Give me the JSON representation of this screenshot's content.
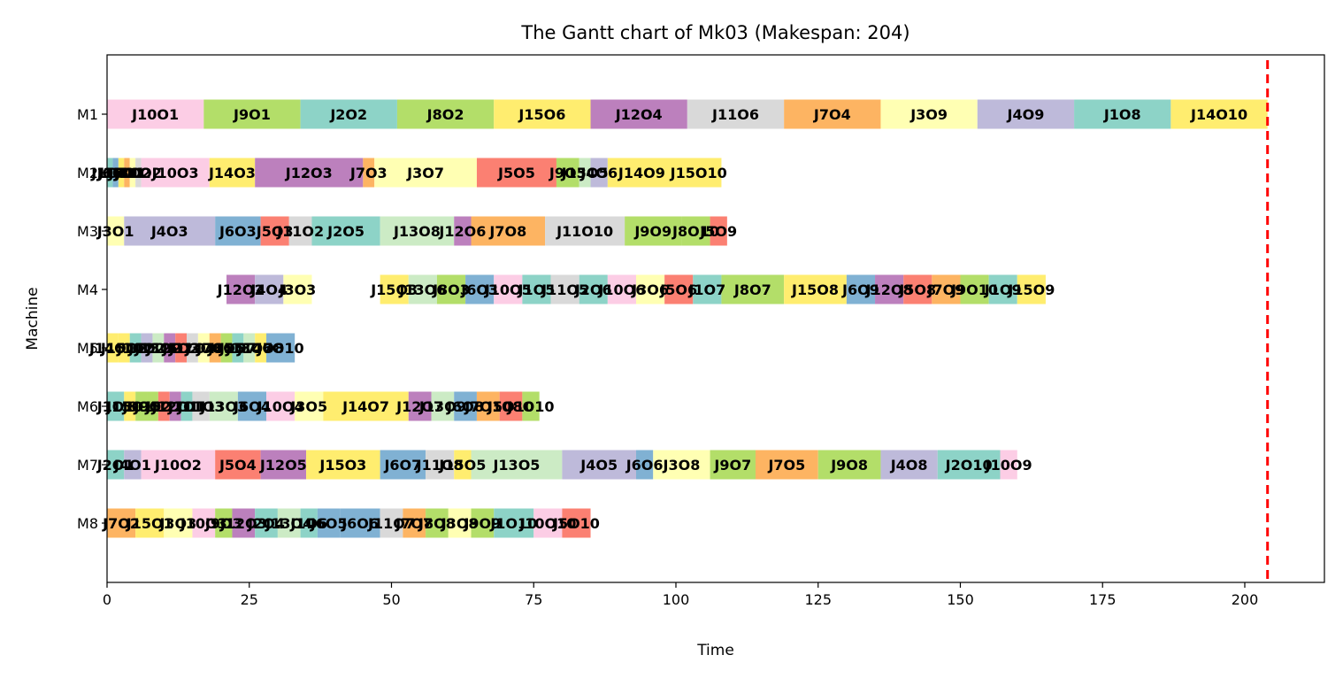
{
  "chart_data": {
    "type": "gantt",
    "title": "The Gantt chart of Mk03 (Makespan: 204)",
    "xlabel": "Time",
    "ylabel": "Machine",
    "xlim": [
      0,
      214
    ],
    "xticks": [
      0,
      25,
      50,
      75,
      100,
      125,
      150,
      175,
      200
    ],
    "machines": [
      "M1",
      "M2",
      "M3",
      "M4",
      "M5",
      "M6",
      "M7",
      "M8"
    ],
    "makespan": 204,
    "makespan_line_color": "#ff0000",
    "palette": [
      "#8dd3c7",
      "#ffffb3",
      "#bebada",
      "#fb8072",
      "#80b1d3",
      "#fdb462",
      "#b3de69",
      "#fccde5",
      "#d9d9d9",
      "#bc80bd",
      "#ccebc5",
      "#ffed6f"
    ],
    "grid": false,
    "legend": "none",
    "tasks": [
      {
        "machine": "M1",
        "label": "J10O1",
        "start": 0,
        "end": 17,
        "color": "#fccde5"
      },
      {
        "machine": "M1",
        "label": "J9O1",
        "start": 17,
        "end": 34,
        "color": "#b3de69"
      },
      {
        "machine": "M1",
        "label": "J2O2",
        "start": 34,
        "end": 51,
        "color": "#8dd3c7"
      },
      {
        "machine": "M1",
        "label": "J8O2",
        "start": 51,
        "end": 68,
        "color": "#b3de69"
      },
      {
        "machine": "M1",
        "label": "J15O6",
        "start": 68,
        "end": 85,
        "color": "#ffed6f"
      },
      {
        "machine": "M1",
        "label": "J12O4",
        "start": 85,
        "end": 102,
        "color": "#bc80bd"
      },
      {
        "machine": "M1",
        "label": "J11O6",
        "start": 102,
        "end": 119,
        "color": "#d9d9d9"
      },
      {
        "machine": "M1",
        "label": "J7O4",
        "start": 119,
        "end": 136,
        "color": "#fdb462"
      },
      {
        "machine": "M1",
        "label": "J3O9",
        "start": 136,
        "end": 153,
        "color": "#ffffb3"
      },
      {
        "machine": "M1",
        "label": "J4O9",
        "start": 153,
        "end": 170,
        "color": "#bebada"
      },
      {
        "machine": "M1",
        "label": "J1O8",
        "start": 170,
        "end": 187,
        "color": "#8dd3c7"
      },
      {
        "machine": "M1",
        "label": "J14O10",
        "start": 187,
        "end": 204,
        "color": "#ffed6f"
      },
      {
        "machine": "M2",
        "label": "J1O1",
        "start": 0,
        "end": 1,
        "color": "#8dd3c7"
      },
      {
        "machine": "M2",
        "label": "J6O1",
        "start": 1,
        "end": 2,
        "color": "#80b1d3"
      },
      {
        "machine": "M2",
        "label": "J15O1",
        "start": 2,
        "end": 3,
        "color": "#ffed6f"
      },
      {
        "machine": "M2",
        "label": "J7O1",
        "start": 3,
        "end": 4,
        "color": "#fdb462"
      },
      {
        "machine": "M2",
        "label": "J3O2",
        "start": 4,
        "end": 5,
        "color": "#ffffb3"
      },
      {
        "machine": "M2",
        "label": "J11O2",
        "start": 5,
        "end": 6,
        "color": "#d9d9d9"
      },
      {
        "machine": "M2",
        "label": "J10O3",
        "start": 6,
        "end": 18,
        "color": "#fccde5"
      },
      {
        "machine": "M2",
        "label": "J14O3",
        "start": 18,
        "end": 26,
        "color": "#ffed6f"
      },
      {
        "machine": "M2",
        "label": "J12O3",
        "start": 26,
        "end": 45,
        "color": "#bc80bd"
      },
      {
        "machine": "M2",
        "label": "J7O3",
        "start": 45,
        "end": 47,
        "color": "#fdb462"
      },
      {
        "machine": "M2",
        "label": "J3O7",
        "start": 47,
        "end": 65,
        "color": "#ffffb3"
      },
      {
        "machine": "M2",
        "label": "J5O5",
        "start": 65,
        "end": 79,
        "color": "#fb8072"
      },
      {
        "machine": "M2",
        "label": "J9O5",
        "start": 79,
        "end": 83,
        "color": "#b3de69"
      },
      {
        "machine": "M2",
        "label": "J13O5",
        "start": 83,
        "end": 85,
        "color": "#ccebc5"
      },
      {
        "machine": "M2",
        "label": "J4O6",
        "start": 85,
        "end": 88,
        "color": "#bebada"
      },
      {
        "machine": "M2",
        "label": "J14O9",
        "start": 88,
        "end": 100,
        "color": "#ffed6f"
      },
      {
        "machine": "M2",
        "label": "J15O10",
        "start": 100,
        "end": 108,
        "color": "#ffed6f"
      },
      {
        "machine": "M3",
        "label": "J3O1",
        "start": 0,
        "end": 3,
        "color": "#ffffb3"
      },
      {
        "machine": "M3",
        "label": "J4O3",
        "start": 3,
        "end": 19,
        "color": "#bebada"
      },
      {
        "machine": "M3",
        "label": "J6O3",
        "start": 19,
        "end": 27,
        "color": "#80b1d3"
      },
      {
        "machine": "M3",
        "label": "J5O3",
        "start": 27,
        "end": 32,
        "color": "#fb8072"
      },
      {
        "machine": "M3",
        "label": "J11O2",
        "start": 32,
        "end": 36,
        "color": "#d9d9d9"
      },
      {
        "machine": "M3",
        "label": "J2O5",
        "start": 36,
        "end": 48,
        "color": "#8dd3c7"
      },
      {
        "machine": "M3",
        "label": "J13O8",
        "start": 48,
        "end": 61,
        "color": "#ccebc5"
      },
      {
        "machine": "M3",
        "label": "J12O6",
        "start": 61,
        "end": 64,
        "color": "#bc80bd"
      },
      {
        "machine": "M3",
        "label": "J7O8",
        "start": 64,
        "end": 77,
        "color": "#fdb462"
      },
      {
        "machine": "M3",
        "label": "J11O10",
        "start": 77,
        "end": 91,
        "color": "#d9d9d9"
      },
      {
        "machine": "M3",
        "label": "J9O9",
        "start": 91,
        "end": 101,
        "color": "#b3de69"
      },
      {
        "machine": "M3",
        "label": "J8O10",
        "start": 101,
        "end": 106,
        "color": "#b3de69"
      },
      {
        "machine": "M3",
        "label": "J5O9",
        "start": 106,
        "end": 109,
        "color": "#fb8072"
      },
      {
        "machine": "M4",
        "label": "J12O2",
        "start": 21,
        "end": 26,
        "color": "#bc80bd"
      },
      {
        "machine": "M4",
        "label": "J4O4",
        "start": 26,
        "end": 31,
        "color": "#bebada"
      },
      {
        "machine": "M4",
        "label": "J3O3",
        "start": 31,
        "end": 36,
        "color": "#ffffb3"
      },
      {
        "machine": "M4",
        "label": "J15O3",
        "start": 48,
        "end": 53,
        "color": "#ffed6f"
      },
      {
        "machine": "M4",
        "label": "J13O6",
        "start": 53,
        "end": 58,
        "color": "#ccebc5"
      },
      {
        "machine": "M4",
        "label": "J8O3",
        "start": 58,
        "end": 63,
        "color": "#b3de69"
      },
      {
        "machine": "M4",
        "label": "J6O3",
        "start": 63,
        "end": 68,
        "color": "#80b1d3"
      },
      {
        "machine": "M4",
        "label": "J10O5",
        "start": 68,
        "end": 73,
        "color": "#fccde5"
      },
      {
        "machine": "M4",
        "label": "J1O5",
        "start": 73,
        "end": 78,
        "color": "#8dd3c7"
      },
      {
        "machine": "M4",
        "label": "J11O5",
        "start": 78,
        "end": 83,
        "color": "#d9d9d9"
      },
      {
        "machine": "M4",
        "label": "J2O6",
        "start": 83,
        "end": 88,
        "color": "#8dd3c7"
      },
      {
        "machine": "M4",
        "label": "J10O6",
        "start": 88,
        "end": 93,
        "color": "#fccde5"
      },
      {
        "machine": "M4",
        "label": "J3O6",
        "start": 93,
        "end": 98,
        "color": "#ffffb3"
      },
      {
        "machine": "M4",
        "label": "J5O6",
        "start": 98,
        "end": 103,
        "color": "#fb8072"
      },
      {
        "machine": "M4",
        "label": "J1O7",
        "start": 103,
        "end": 108,
        "color": "#8dd3c7"
      },
      {
        "machine": "M4",
        "label": "J8O7",
        "start": 108,
        "end": 119,
        "color": "#b3de69"
      },
      {
        "machine": "M4",
        "label": "J15O8",
        "start": 119,
        "end": 130,
        "color": "#ffed6f"
      },
      {
        "machine": "M4",
        "label": "J6O9",
        "start": 130,
        "end": 135,
        "color": "#80b1d3"
      },
      {
        "machine": "M4",
        "label": "J12O8",
        "start": 135,
        "end": 140,
        "color": "#bc80bd"
      },
      {
        "machine": "M4",
        "label": "J5O8",
        "start": 140,
        "end": 145,
        "color": "#fb8072"
      },
      {
        "machine": "M4",
        "label": "J7O9",
        "start": 145,
        "end": 150,
        "color": "#fdb462"
      },
      {
        "machine": "M4",
        "label": "J9O10",
        "start": 150,
        "end": 155,
        "color": "#b3de69"
      },
      {
        "machine": "M4",
        "label": "J1O9",
        "start": 155,
        "end": 160,
        "color": "#8dd3c7"
      },
      {
        "machine": "M4",
        "label": "J15O9",
        "start": 160,
        "end": 165,
        "color": "#ffed6f"
      },
      {
        "machine": "M5",
        "label": "J14O1",
        "start": 0,
        "end": 2,
        "color": "#ffed6f"
      },
      {
        "machine": "M5",
        "label": "J15O2",
        "start": 2,
        "end": 4,
        "color": "#ffed6f"
      },
      {
        "machine": "M5",
        "label": "J1O2",
        "start": 4,
        "end": 6,
        "color": "#8dd3c7"
      },
      {
        "machine": "M5",
        "label": "J4O2",
        "start": 6,
        "end": 8,
        "color": "#bebada"
      },
      {
        "machine": "M5",
        "label": "J13O2",
        "start": 8,
        "end": 10,
        "color": "#ccebc5"
      },
      {
        "machine": "M5",
        "label": "J12O2",
        "start": 10,
        "end": 12,
        "color": "#bc80bd"
      },
      {
        "machine": "M5",
        "label": "J5O2",
        "start": 12,
        "end": 14,
        "color": "#fb8072"
      },
      {
        "machine": "M5",
        "label": "J11O4",
        "start": 14,
        "end": 16,
        "color": "#d9d9d9"
      },
      {
        "machine": "M5",
        "label": "J3O4",
        "start": 16,
        "end": 18,
        "color": "#ffffb3"
      },
      {
        "machine": "M5",
        "label": "J7O5",
        "start": 18,
        "end": 20,
        "color": "#fdb462"
      },
      {
        "machine": "M5",
        "label": "J8O5",
        "start": 20,
        "end": 22,
        "color": "#b3de69"
      },
      {
        "machine": "M5",
        "label": "J2O7",
        "start": 22,
        "end": 24,
        "color": "#8dd3c7"
      },
      {
        "machine": "M5",
        "label": "J13O7",
        "start": 24,
        "end": 26,
        "color": "#ccebc5"
      },
      {
        "machine": "M5",
        "label": "J14O8",
        "start": 26,
        "end": 28,
        "color": "#ffed6f"
      },
      {
        "machine": "M5",
        "label": "J6O10",
        "start": 28,
        "end": 33,
        "color": "#80b1d3"
      },
      {
        "machine": "M6",
        "label": "J1O1",
        "start": 0,
        "end": 3,
        "color": "#8dd3c7"
      },
      {
        "machine": "M6",
        "label": "J15O1",
        "start": 3,
        "end": 5,
        "color": "#ffed6f"
      },
      {
        "machine": "M6",
        "label": "J8O1",
        "start": 5,
        "end": 7,
        "color": "#b3de69"
      },
      {
        "machine": "M6",
        "label": "J9O2",
        "start": 7,
        "end": 9,
        "color": "#b3de69"
      },
      {
        "machine": "M6",
        "label": "J5O1",
        "start": 9,
        "end": 11,
        "color": "#fb8072"
      },
      {
        "machine": "M6",
        "label": "J12O1",
        "start": 11,
        "end": 13,
        "color": "#bc80bd"
      },
      {
        "machine": "M6",
        "label": "J2O1",
        "start": 13,
        "end": 15,
        "color": "#8dd3c7"
      },
      {
        "machine": "M6",
        "label": "J11O3",
        "start": 15,
        "end": 18,
        "color": "#d9d9d9"
      },
      {
        "machine": "M6",
        "label": "J13O3",
        "start": 18,
        "end": 23,
        "color": "#ccebc5"
      },
      {
        "machine": "M6",
        "label": "J6O4",
        "start": 23,
        "end": 28,
        "color": "#80b1d3"
      },
      {
        "machine": "M6",
        "label": "J10O4",
        "start": 28,
        "end": 33,
        "color": "#fccde5"
      },
      {
        "machine": "M6",
        "label": "J3O5",
        "start": 33,
        "end": 38,
        "color": "#ffffb3"
      },
      {
        "machine": "M6",
        "label": "J14O7",
        "start": 38,
        "end": 53,
        "color": "#ffed6f"
      },
      {
        "machine": "M6",
        "label": "J12O7",
        "start": 53,
        "end": 57,
        "color": "#bc80bd"
      },
      {
        "machine": "M6",
        "label": "J13O9",
        "start": 57,
        "end": 61,
        "color": "#ccebc5"
      },
      {
        "machine": "M6",
        "label": "J6O8",
        "start": 61,
        "end": 65,
        "color": "#80b1d3"
      },
      {
        "machine": "M6",
        "label": "J7O10",
        "start": 65,
        "end": 69,
        "color": "#fdb462"
      },
      {
        "machine": "M6",
        "label": "J5O10",
        "start": 69,
        "end": 73,
        "color": "#fb8072"
      },
      {
        "machine": "M6",
        "label": "J8O10",
        "start": 73,
        "end": 76,
        "color": "#b3de69"
      },
      {
        "machine": "M7",
        "label": "J2O1",
        "start": 0,
        "end": 3,
        "color": "#8dd3c7"
      },
      {
        "machine": "M7",
        "label": "J4O1",
        "start": 3,
        "end": 6,
        "color": "#bebada"
      },
      {
        "machine": "M7",
        "label": "J10O2",
        "start": 6,
        "end": 19,
        "color": "#fccde5"
      },
      {
        "machine": "M7",
        "label": "J5O4",
        "start": 19,
        "end": 27,
        "color": "#fb8072"
      },
      {
        "machine": "M7",
        "label": "J12O5",
        "start": 27,
        "end": 35,
        "color": "#bc80bd"
      },
      {
        "machine": "M7",
        "label": "J15O3",
        "start": 35,
        "end": 48,
        "color": "#ffed6f"
      },
      {
        "machine": "M7",
        "label": "J6O7",
        "start": 48,
        "end": 56,
        "color": "#80b1d3"
      },
      {
        "machine": "M7",
        "label": "J11O8",
        "start": 56,
        "end": 61,
        "color": "#d9d9d9"
      },
      {
        "machine": "M7",
        "label": "J15O5",
        "start": 61,
        "end": 64,
        "color": "#ffed6f"
      },
      {
        "machine": "M7",
        "label": "J13O5",
        "start": 64,
        "end": 80,
        "color": "#ccebc5"
      },
      {
        "machine": "M7",
        "label": "J4O5",
        "start": 80,
        "end": 93,
        "color": "#bebada"
      },
      {
        "machine": "M7",
        "label": "J6O6",
        "start": 93,
        "end": 96,
        "color": "#80b1d3"
      },
      {
        "machine": "M7",
        "label": "J3O8",
        "start": 96,
        "end": 106,
        "color": "#ffffb3"
      },
      {
        "machine": "M7",
        "label": "J9O7",
        "start": 106,
        "end": 114,
        "color": "#b3de69"
      },
      {
        "machine": "M7",
        "label": "J7O5",
        "start": 114,
        "end": 125,
        "color": "#fdb462"
      },
      {
        "machine": "M7",
        "label": "J9O8",
        "start": 125,
        "end": 136,
        "color": "#b3de69"
      },
      {
        "machine": "M7",
        "label": "J4O8",
        "start": 136,
        "end": 146,
        "color": "#bebada"
      },
      {
        "machine": "M7",
        "label": "J2O10",
        "start": 146,
        "end": 157,
        "color": "#8dd3c7"
      },
      {
        "machine": "M7",
        "label": "J10O9",
        "start": 157,
        "end": 160,
        "color": "#fccde5"
      },
      {
        "machine": "M8",
        "label": "J7O2",
        "start": 0,
        "end": 5,
        "color": "#fdb462"
      },
      {
        "machine": "M8",
        "label": "J15O1",
        "start": 5,
        "end": 10,
        "color": "#ffed6f"
      },
      {
        "machine": "M8",
        "label": "J3O3",
        "start": 10,
        "end": 15,
        "color": "#ffffb3"
      },
      {
        "machine": "M8",
        "label": "J10O3",
        "start": 15,
        "end": 19,
        "color": "#fccde5"
      },
      {
        "machine": "M8",
        "label": "J9O3",
        "start": 19,
        "end": 22,
        "color": "#b3de69"
      },
      {
        "machine": "M8",
        "label": "J12O3",
        "start": 22,
        "end": 26,
        "color": "#bc80bd"
      },
      {
        "machine": "M8",
        "label": "J2O4",
        "start": 26,
        "end": 30,
        "color": "#8dd3c7"
      },
      {
        "machine": "M8",
        "label": "J13O4",
        "start": 30,
        "end": 34,
        "color": "#ccebc5"
      },
      {
        "machine": "M8",
        "label": "J1O6",
        "start": 34,
        "end": 37,
        "color": "#8dd3c7"
      },
      {
        "machine": "M8",
        "label": "J6O5",
        "start": 37,
        "end": 41,
        "color": "#80b1d3"
      },
      {
        "machine": "M8",
        "label": "J6O6",
        "start": 41,
        "end": 48,
        "color": "#80b1d3"
      },
      {
        "machine": "M8",
        "label": "J11O7",
        "start": 48,
        "end": 52,
        "color": "#d9d9d9"
      },
      {
        "machine": "M8",
        "label": "J7O7",
        "start": 52,
        "end": 56,
        "color": "#fdb462"
      },
      {
        "machine": "M8",
        "label": "J8O8",
        "start": 56,
        "end": 60,
        "color": "#b3de69"
      },
      {
        "machine": "M8",
        "label": "J3O8",
        "start": 60,
        "end": 64,
        "color": "#ffffb3"
      },
      {
        "machine": "M8",
        "label": "J9O9",
        "start": 64,
        "end": 68,
        "color": "#b3de69"
      },
      {
        "machine": "M8",
        "label": "J1O10",
        "start": 68,
        "end": 75,
        "color": "#8dd3c7"
      },
      {
        "machine": "M8",
        "label": "J10O10",
        "start": 75,
        "end": 80,
        "color": "#fccde5"
      },
      {
        "machine": "M8",
        "label": "J5O10",
        "start": 80,
        "end": 85,
        "color": "#fb8072"
      }
    ]
  }
}
